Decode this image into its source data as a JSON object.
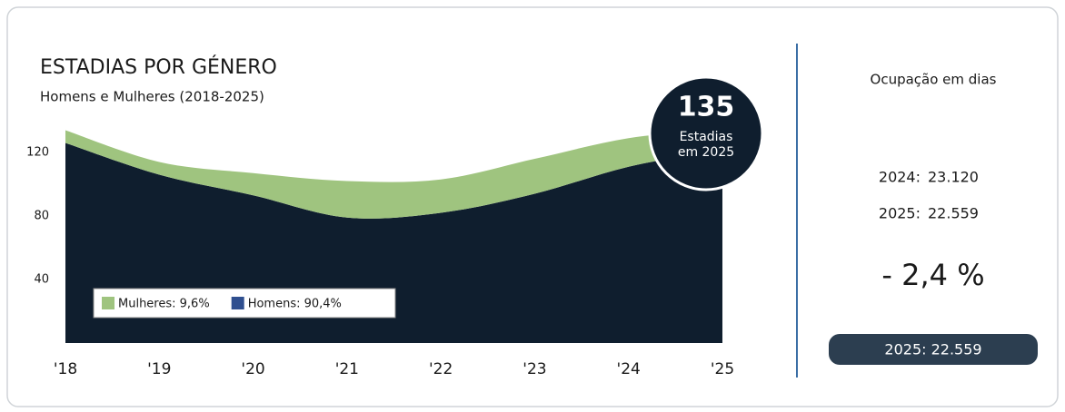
{
  "chart_data": {
    "type": "area",
    "stacked": true,
    "title": "ESTADIAS POR GÉNERO",
    "subtitle": "Homens e Mulheres (2018-2025)",
    "categories": [
      "'18",
      "'19",
      "'20",
      "'21",
      "'22",
      "'23",
      "'24",
      "'25"
    ],
    "series": [
      {
        "name": "Homens: 90,4%",
        "color": "#0f1e2e",
        "legend_color": "#2f4f8f",
        "values": [
          126,
          106,
          93,
          79,
          82,
          94,
          111,
          122
        ]
      },
      {
        "name": "Mulheres: 9,6%",
        "color": "#9fc47f",
        "legend_color": "#9fc47f",
        "values": [
          8,
          8,
          14,
          23,
          21,
          22,
          18,
          13
        ]
      }
    ],
    "ylim": [
      0,
      140
    ],
    "yticks": [
      40,
      80,
      120
    ],
    "grid": false,
    "annotation": {
      "value": 135,
      "lines": [
        "Estadias",
        "em 2025"
      ]
    }
  },
  "panel": {
    "title": "Ocupação em dias",
    "rows": [
      [
        "2024:",
        "23.120"
      ],
      [
        "2025:",
        "22.559"
      ]
    ],
    "change": "- 2,4 %",
    "pill": "2025: 22.559"
  }
}
